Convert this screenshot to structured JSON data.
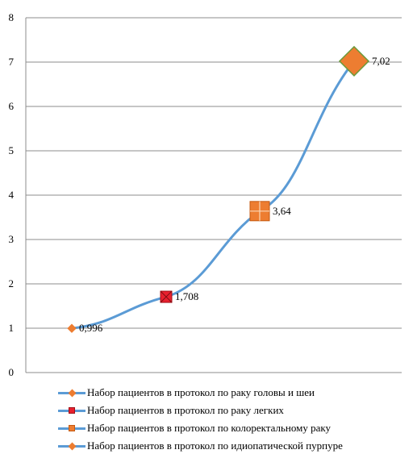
{
  "chart_data": {
    "type": "line",
    "title": "",
    "xlabel": "",
    "ylabel": "",
    "ylim": [
      0,
      8
    ],
    "yticks": [
      "0",
      "1",
      "2",
      "3",
      "4",
      "5",
      "6",
      "7",
      "8"
    ],
    "grid": true,
    "legend_position": "bottom",
    "line_color": "#5b9bd5",
    "points": [
      {
        "x": 1,
        "y": 0.996,
        "label": "0,996",
        "marker": "diamond",
        "color": "#ed7d31"
      },
      {
        "x": 2,
        "y": 1.708,
        "label": "1,708",
        "marker": "square-x",
        "color": "#e8202e"
      },
      {
        "x": 3,
        "y": 3.64,
        "label": "3,64",
        "marker": "square-plus",
        "color": "#ed7d31"
      },
      {
        "x": 4,
        "y": 7.02,
        "label": "7,02",
        "marker": "diamond",
        "color": "#ed7d31"
      }
    ],
    "series": [
      {
        "name": "Набор пациентов в протокол по раку головы и шеи",
        "marker": "diamond",
        "color": "#ed7d31"
      },
      {
        "name": "Набор пациентов в протокол по раку легких",
        "marker": "square-x",
        "color": "#e8202e"
      },
      {
        "name": "Набор пациентов в протокол по колоректальному раку",
        "marker": "square-plus",
        "color": "#ed7d31"
      },
      {
        "name": "Набор пациентов в протокол по идиопатической пурпуре",
        "marker": "diamond",
        "color": "#ed7d31"
      }
    ]
  }
}
